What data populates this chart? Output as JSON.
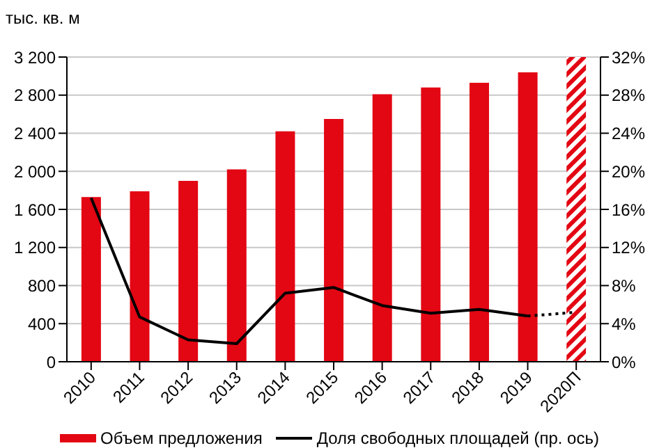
{
  "chart_data": {
    "type": "bar",
    "ylabel": "тыс. кв. м",
    "categories": [
      "2010",
      "2011",
      "2012",
      "2013",
      "2014",
      "2015",
      "2016",
      "2017",
      "2018",
      "2019",
      "2020П"
    ],
    "series": [
      {
        "name": "Объем предложения",
        "color": "#e30613",
        "values": [
          1730,
          1790,
          1900,
          2020,
          2420,
          2550,
          2810,
          2880,
          2930,
          3040,
          null
        ]
      },
      {
        "name": "Доля свободных площадей (пр. ось)",
        "type": "line",
        "axis": "y2",
        "color": "#000000",
        "line_style": "solid",
        "values": [
          17.2,
          4.7,
          2.3,
          1.9,
          7.2,
          7.8,
          5.9,
          5.1,
          5.5,
          4.8,
          null
        ]
      },
      {
        "type": "line",
        "axis": "y2",
        "color": "#000000",
        "line_style": "dotted",
        "values": [
          null,
          null,
          null,
          null,
          null,
          null,
          null,
          null,
          null,
          4.8,
          5.2
        ]
      }
    ],
    "bands": [
      {
        "axis": "x",
        "from": "2020П",
        "to": "2020П",
        "color": "#e30613"
      }
    ],
    "ylim": [
      0,
      3200
    ],
    "yticks": [
      {
        "value": 0,
        "label": "0"
      },
      {
        "value": 400,
        "label": "400"
      },
      {
        "value": 800,
        "label": "800"
      },
      {
        "value": 1200,
        "label": "1 200"
      },
      {
        "value": 1600,
        "label": "1 600"
      },
      {
        "value": 2000,
        "label": "2 000"
      },
      {
        "value": 2400,
        "label": "2 400"
      },
      {
        "value": 2800,
        "label": "2 800"
      },
      {
        "value": 3200,
        "label": "3 200"
      }
    ],
    "y2lim": [
      0,
      32
    ],
    "y2ticks": [
      {
        "value": 0,
        "label": "0%"
      },
      {
        "value": 4,
        "label": "4%"
      },
      {
        "value": 8,
        "label": "8%"
      },
      {
        "value": 12,
        "label": "12%"
      },
      {
        "value": 16,
        "label": "16%"
      },
      {
        "value": 20,
        "label": "20%"
      },
      {
        "value": 24,
        "label": "24%"
      },
      {
        "value": 28,
        "label": "28%"
      },
      {
        "value": 32,
        "label": "32%"
      }
    ],
    "grid": "y",
    "legend": "bottom",
    "marker": "none"
  }
}
